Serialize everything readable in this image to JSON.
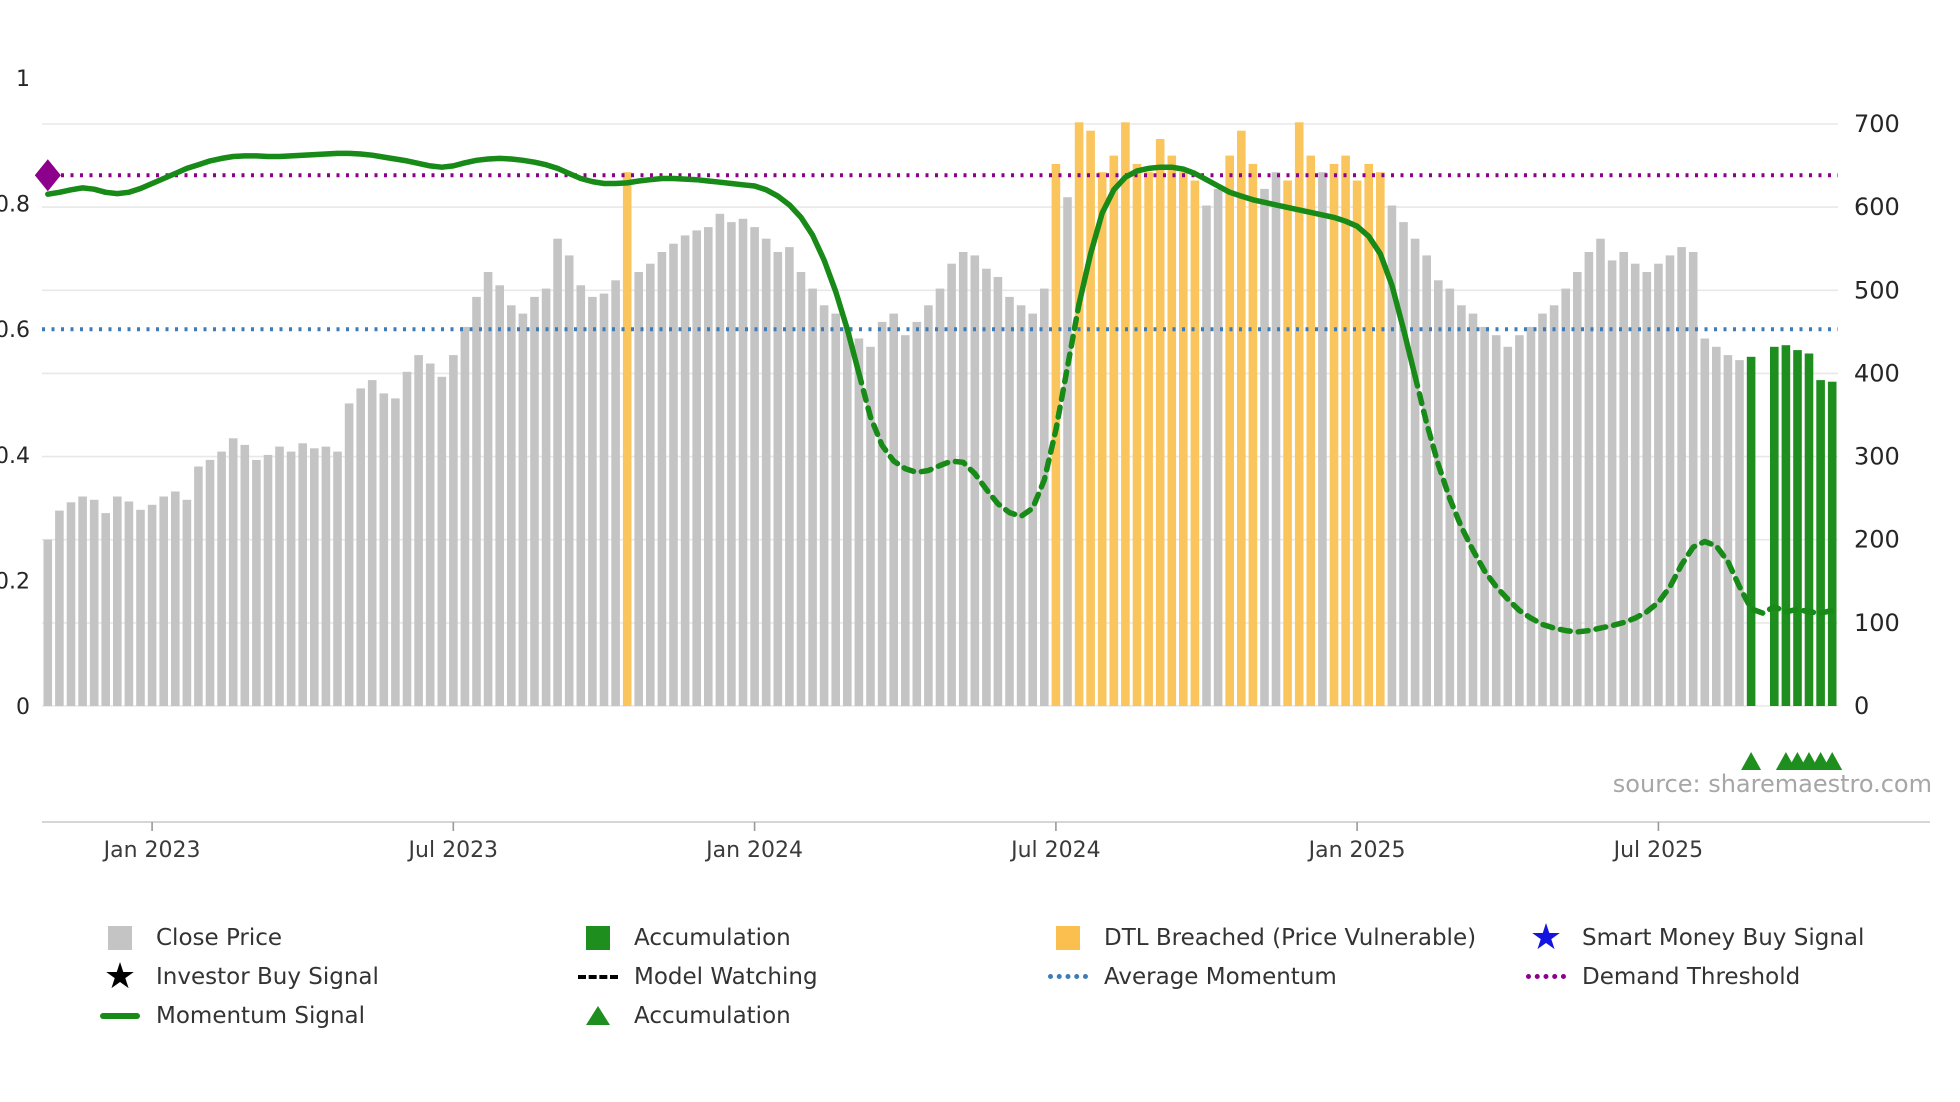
{
  "source_credit": "source: sharemaestro.com",
  "colors": {
    "close_price": "#c4c4c4",
    "dtl_breached": "#fbc55e",
    "accumulation": "#1e8f1e",
    "momentum_line": "#178a17",
    "average_momentum": "#3e7cb8",
    "demand_threshold": "#8c008c",
    "smart_money": "#1414e0",
    "grid": "#e8e8e8",
    "axis_text": "#262626",
    "tick_label_text": "#3a3a3a",
    "source_text": "#a6a6a6"
  },
  "legend": {
    "items": [
      {
        "icon": "gray-square-icon",
        "label": "Close Price"
      },
      {
        "icon": "black-star-icon",
        "label": "Investor Buy Signal"
      },
      {
        "icon": "green-line-icon",
        "label": "Momentum Signal"
      },
      {
        "icon": "green-square-icon",
        "label": "Accumulation"
      },
      {
        "icon": "black-dashed-line-icon",
        "label": "Model Watching"
      },
      {
        "icon": "green-triangle-icon",
        "label": "Accumulation"
      },
      {
        "icon": "orange-square-icon",
        "label": "DTL Breached (Price Vulnerable)"
      },
      {
        "icon": "blue-dotted-line-icon",
        "label": "Average Momentum"
      },
      {
        "icon": "blue-star-icon",
        "label": "Smart Money Buy Signal"
      },
      {
        "icon": "purple-dotted-line-icon",
        "label": "Demand Threshold"
      }
    ]
  },
  "chart_data": {
    "type": "bar",
    "title": "",
    "xlabel": "",
    "ylabel": "",
    "x_tick_labels": [
      "Jan 2023",
      "Jul 2023",
      "Jan 2024",
      "Jul 2024",
      "Jan 2025",
      "Jul 2025"
    ],
    "x_tick_indices": [
      9,
      35,
      61,
      87,
      113,
      139
    ],
    "left_axis": {
      "ticks": [
        0,
        0.2,
        0.4,
        0.6,
        0.8,
        1
      ],
      "range": [
        0,
        1
      ]
    },
    "right_axis": {
      "ticks": [
        0,
        100,
        200,
        300,
        400,
        500,
        600,
        700
      ],
      "range": [
        0,
        700
      ]
    },
    "grid": true,
    "series": [
      {
        "name": "Close Price",
        "type": "bar",
        "axis": "right",
        "values": [
          200,
          235,
          245,
          252,
          248,
          232,
          252,
          246,
          236,
          242,
          252,
          258,
          248,
          288,
          296,
          306,
          322,
          314,
          296,
          302,
          312,
          306,
          316,
          310,
          312,
          306,
          364,
          382,
          392,
          376,
          370,
          402,
          422,
          412,
          396,
          422,
          456,
          492,
          522,
          506,
          482,
          472,
          492,
          502,
          562,
          542,
          506,
          492,
          496,
          512,
          642,
          522,
          532,
          546,
          556,
          566,
          572,
          576,
          592,
          582,
          586,
          576,
          562,
          546,
          552,
          522,
          502,
          482,
          472,
          456,
          442,
          432,
          462,
          472,
          446,
          462,
          482,
          502,
          532,
          546,
          542,
          526,
          516,
          492,
          482,
          472,
          502,
          652,
          612,
          702,
          692,
          642,
          662,
          702,
          652,
          642,
          682,
          662,
          642,
          632,
          602,
          622,
          662,
          692,
          652,
          622,
          642,
          632,
          702,
          662,
          642,
          652,
          662,
          632,
          652,
          642,
          602,
          582,
          562,
          542,
          512,
          502,
          482,
          472,
          456,
          446,
          432,
          446,
          456,
          472,
          482,
          502,
          522,
          546,
          562,
          536,
          546,
          532,
          522,
          532,
          542,
          552,
          546,
          442,
          432,
          422,
          416,
          420,
          0,
          432,
          434,
          428,
          424,
          392,
          390
        ]
      },
      {
        "name": "Momentum Signal",
        "type": "line",
        "axis": "left",
        "values": [
          0.815,
          0.818,
          0.822,
          0.825,
          0.823,
          0.818,
          0.816,
          0.818,
          0.824,
          0.832,
          0.84,
          0.848,
          0.856,
          0.862,
          0.868,
          0.872,
          0.875,
          0.876,
          0.876,
          0.875,
          0.875,
          0.876,
          0.877,
          0.878,
          0.879,
          0.88,
          0.88,
          0.879,
          0.877,
          0.874,
          0.871,
          0.868,
          0.864,
          0.86,
          0.858,
          0.86,
          0.865,
          0.869,
          0.871,
          0.872,
          0.871,
          0.869,
          0.866,
          0.862,
          0.856,
          0.848,
          0.84,
          0.835,
          0.832,
          0.832,
          0.833,
          0.836,
          0.838,
          0.84,
          0.84,
          0.839,
          0.838,
          0.836,
          0.834,
          0.832,
          0.83,
          0.828,
          0.822,
          0.812,
          0.798,
          0.778,
          0.75,
          0.71,
          0.66,
          0.6,
          0.53,
          0.46,
          0.415,
          0.39,
          0.378,
          0.372,
          0.375,
          0.383,
          0.39,
          0.388,
          0.37,
          0.345,
          0.322,
          0.308,
          0.302,
          0.315,
          0.36,
          0.44,
          0.54,
          0.64,
          0.72,
          0.785,
          0.822,
          0.842,
          0.852,
          0.856,
          0.858,
          0.858,
          0.855,
          0.848,
          0.838,
          0.828,
          0.818,
          0.812,
          0.806,
          0.802,
          0.798,
          0.794,
          0.79,
          0.786,
          0.782,
          0.778,
          0.772,
          0.764,
          0.748,
          0.72,
          0.67,
          0.6,
          0.525,
          0.45,
          0.385,
          0.33,
          0.285,
          0.248,
          0.215,
          0.19,
          0.17,
          0.152,
          0.14,
          0.13,
          0.124,
          0.12,
          0.118,
          0.12,
          0.124,
          0.128,
          0.133,
          0.14,
          0.15,
          0.165,
          0.19,
          0.225,
          0.253,
          0.262,
          0.255,
          0.23,
          0.19,
          0.155,
          0.148,
          0.158,
          0.15,
          0.154,
          0.15,
          0.148,
          0.152
        ]
      }
    ],
    "bar_state": {
      "orange_indices": [
        50,
        87,
        89,
        90,
        91,
        92,
        93,
        94,
        95,
        96,
        97,
        98,
        99,
        102,
        103,
        104,
        107,
        108,
        109,
        111,
        112,
        113,
        114,
        115
      ],
      "green_indices": [
        147,
        149,
        150,
        151,
        152,
        153,
        154
      ]
    },
    "markers": {
      "accumulation_triangle_indices": [
        147,
        150,
        151,
        152,
        153,
        154
      ],
      "demand_marker": {
        "index": 0,
        "value": 0.845
      }
    },
    "reference_lines": [
      {
        "name": "Average Momentum",
        "value": 0.6,
        "axis": "left",
        "style": "dotted"
      },
      {
        "name": "Demand Threshold",
        "value": 0.845,
        "axis": "left",
        "style": "dotted"
      }
    ],
    "legend_position": "bottom"
  }
}
